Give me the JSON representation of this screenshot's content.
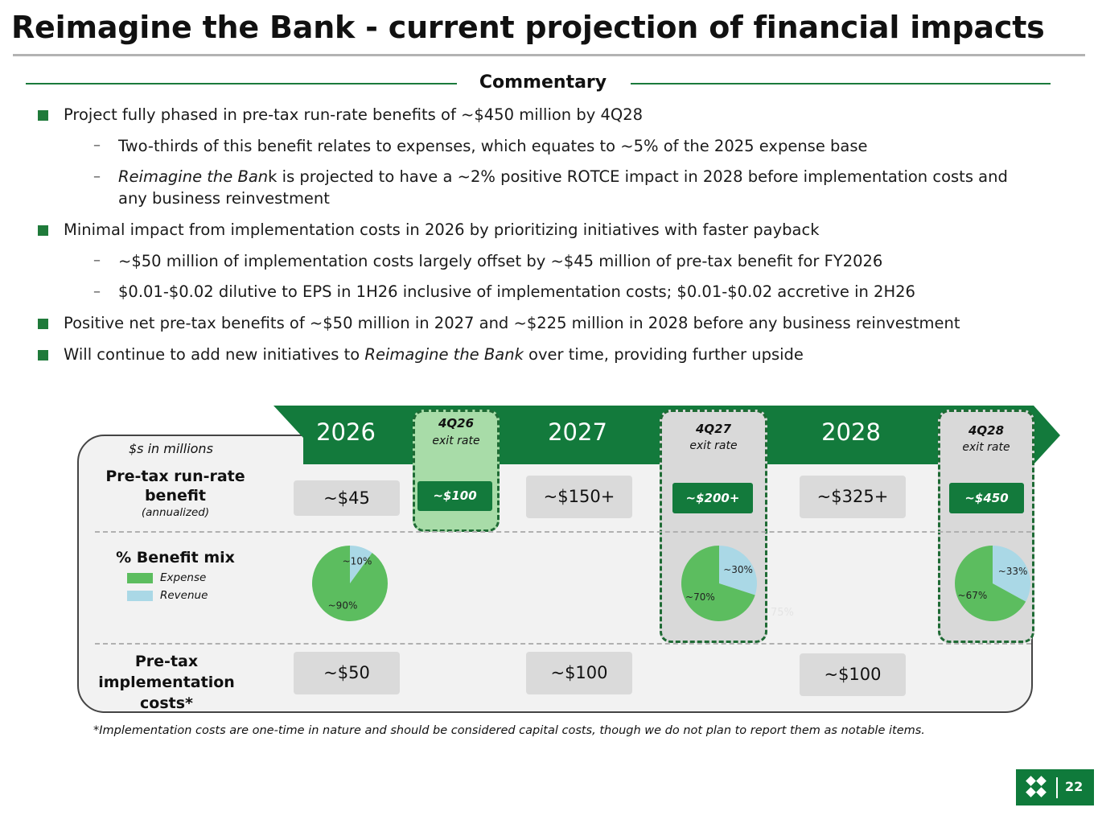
{
  "title": "Reimagine the Bank - current projection of financial impacts",
  "commentary": {
    "heading": "Commentary",
    "b1": "Project fully phased in pre-tax run-rate benefits of ~$450 million by 4Q28",
    "b1_s1": "Two-thirds of this benefit relates to expenses, which equates to ~5% of the 2025 expense base",
    "b1_s2_italic": "Reimagine the Ban",
    "b1_s2_rest": "k is projected to have a ~2% positive ROTCE impact in 2028 before implementation costs and",
    "b1_s2_line2": "any business reinvestment",
    "b2": "Minimal impact from implementation costs in 2026 by prioritizing initiatives with faster payback",
    "b2_s1": "~$50 million of implementation costs largely offset by ~$45 million of pre-tax benefit for FY2026",
    "b2_s2": "$0.01-$0.02 dilutive to EPS in 1H26 inclusive of implementation costs; $0.01-$0.02 accretive in 2H26",
    "b3": "Positive net pre-tax benefits of ~$50 million in 2027 and ~$225 million in 2028 before any business reinvestment",
    "b4_start": "Will continue to add new initiatives to ",
    "b4_italic": "Reimagine the Bank",
    "b4_end": " over time, providing further upside",
    "dash": "–"
  },
  "exhibit": {
    "units": "$s in millions",
    "years": [
      "2026",
      "2027",
      "2028"
    ],
    "exit_rates": [
      {
        "period": "4Q26",
        "label": "exit rate",
        "value": "~$100"
      },
      {
        "period": "4Q27",
        "label": "exit rate",
        "value": "~$200+"
      },
      {
        "period": "4Q28",
        "label": "exit rate",
        "value": "~$450"
      }
    ],
    "row_benefit": {
      "title1": "Pre-tax run-rate",
      "title2": "benefit",
      "note": "(annualized)"
    },
    "benefit_values": [
      "~$45",
      "~$150+",
      "~$325+"
    ],
    "row_mix": {
      "title": "% Benefit mix",
      "legend_expense": "Expense",
      "legend_revenue": "Revenue"
    },
    "row_costs": {
      "title1": "Pre-tax",
      "title2": "implementation",
      "title3": "costs*"
    },
    "cost_values": [
      "~$50",
      "~$100",
      "~$100"
    ],
    "faint_label": "75%"
  },
  "chart_data": [
    {
      "type": "pie",
      "title": "2026",
      "labels": [
        "Expense",
        "Revenue"
      ],
      "values": [
        90,
        10
      ],
      "value_labels": [
        "~90%",
        "~10%"
      ]
    },
    {
      "type": "pie",
      "title": "4Q27",
      "labels": [
        "Expense",
        "Revenue"
      ],
      "values": [
        70,
        30
      ],
      "value_labels": [
        "~70%",
        "~30%"
      ]
    },
    {
      "type": "pie",
      "title": "4Q28",
      "labels": [
        "Expense",
        "Revenue"
      ],
      "values": [
        67,
        33
      ],
      "value_labels": [
        "~67%",
        "~33%"
      ]
    }
  ],
  "colors": {
    "accent": "#137a3c",
    "expense": "#5cbd5f",
    "revenue": "#aad8e6",
    "exit_highlight": "#a8dca8"
  },
  "footnote": "*Implementation costs are one-time in nature and should be considered capital costs, though we do not plan to report them as notable items.",
  "page_number": "22",
  "logo_icon": "bank-logo-icon"
}
